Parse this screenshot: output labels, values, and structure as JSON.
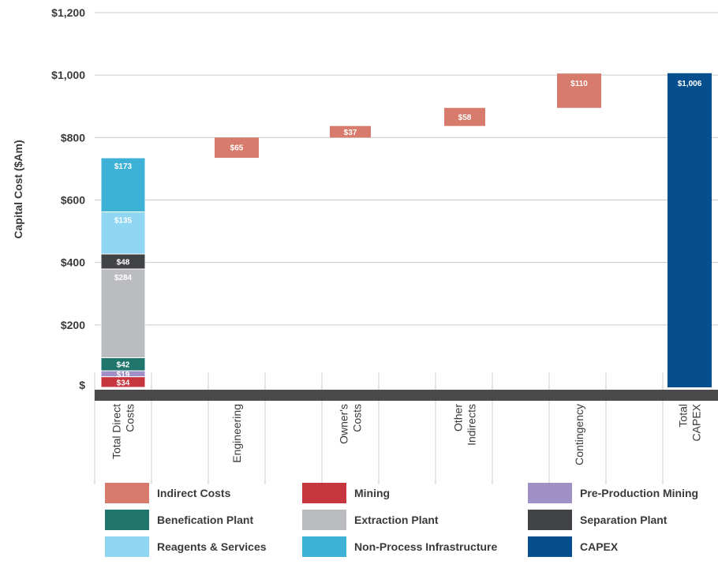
{
  "chart_data": {
    "type": "bar",
    "subtype": "waterfall",
    "ylabel": "Capital Cost ($Am)",
    "ylim": [
      0,
      1200
    ],
    "yticks": [
      {
        "value": 0,
        "label": "$"
      },
      {
        "value": 200,
        "label": "$200"
      },
      {
        "value": 400,
        "label": "$400"
      },
      {
        "value": 600,
        "label": "$600"
      },
      {
        "value": 800,
        "label": "$800"
      },
      {
        "value": 1000,
        "label": "$1,000"
      },
      {
        "value": 1200,
        "label": "$1,200"
      }
    ],
    "grid": true,
    "legend_position": "bottom",
    "categories": [
      {
        "lines": [
          "Total Direct",
          "Costs"
        ]
      },
      {
        "lines": [
          "Engineering"
        ]
      },
      {
        "lines": [
          "Owner's",
          "Costs"
        ]
      },
      {
        "lines": [
          "Other",
          "Indirects"
        ]
      },
      {
        "lines": [
          "Contingency"
        ]
      },
      {
        "lines": [
          "Total",
          "CAPEX"
        ]
      }
    ],
    "segments": [
      {
        "category": 0,
        "series": "Mining",
        "value": 34,
        "base": 0,
        "label": "$34"
      },
      {
        "category": 0,
        "series": "Pre-Production Mining",
        "value": 19,
        "base": 34,
        "label": "$19"
      },
      {
        "category": 0,
        "series": "Benefication Plant",
        "value": 42,
        "base": 53,
        "label": "$42"
      },
      {
        "category": 0,
        "series": "Extraction Plant",
        "value": 284,
        "base": 95,
        "label": "$284"
      },
      {
        "category": 0,
        "series": "Separation Plant",
        "value": 48,
        "base": 379,
        "label": "$48"
      },
      {
        "category": 0,
        "series": "Reagents & Services",
        "value": 135,
        "base": 427,
        "label": "$135"
      },
      {
        "category": 0,
        "series": "Non-Process Infrastructure",
        "value": 173,
        "base": 562,
        "label": "$173"
      },
      {
        "category": 1,
        "series": "Indirect Costs",
        "value": 65,
        "base": 735,
        "label": "$65"
      },
      {
        "category": 2,
        "series": "Indirect Costs",
        "value": 37,
        "base": 800,
        "label": "$37"
      },
      {
        "category": 3,
        "series": "Indirect Costs",
        "value": 58,
        "base": 837,
        "label": "$58"
      },
      {
        "category": 4,
        "series": "Indirect Costs",
        "value": 110,
        "base": 895,
        "label": "$110"
      },
      {
        "category": 5,
        "series": "CAPEX",
        "value": 1006,
        "base": 0,
        "label": "$1,006"
      }
    ],
    "legend": [
      {
        "name": "Indirect Costs",
        "color": "#d77b6c"
      },
      {
        "name": "Mining",
        "color": "#c7363f"
      },
      {
        "name": "Pre-Production Mining",
        "color": "#9f91c6"
      },
      {
        "name": "Benefication Plant",
        "color": "#20756c"
      },
      {
        "name": "Extraction Plant",
        "color": "#bbbcc0"
      },
      {
        "name": "Separation Plant",
        "color": "#424346"
      },
      {
        "name": "Reagents & Services",
        "color": "#8fd6f2"
      },
      {
        "name": "Non-Process Infrastructure",
        "color": "#3eb1d6"
      },
      {
        "name": "CAPEX",
        "color": "#064f8f"
      }
    ],
    "colors": {
      "grid": "#c9c9c9",
      "axis": "#4a4a4a",
      "divider": "#cfcfcf"
    }
  }
}
